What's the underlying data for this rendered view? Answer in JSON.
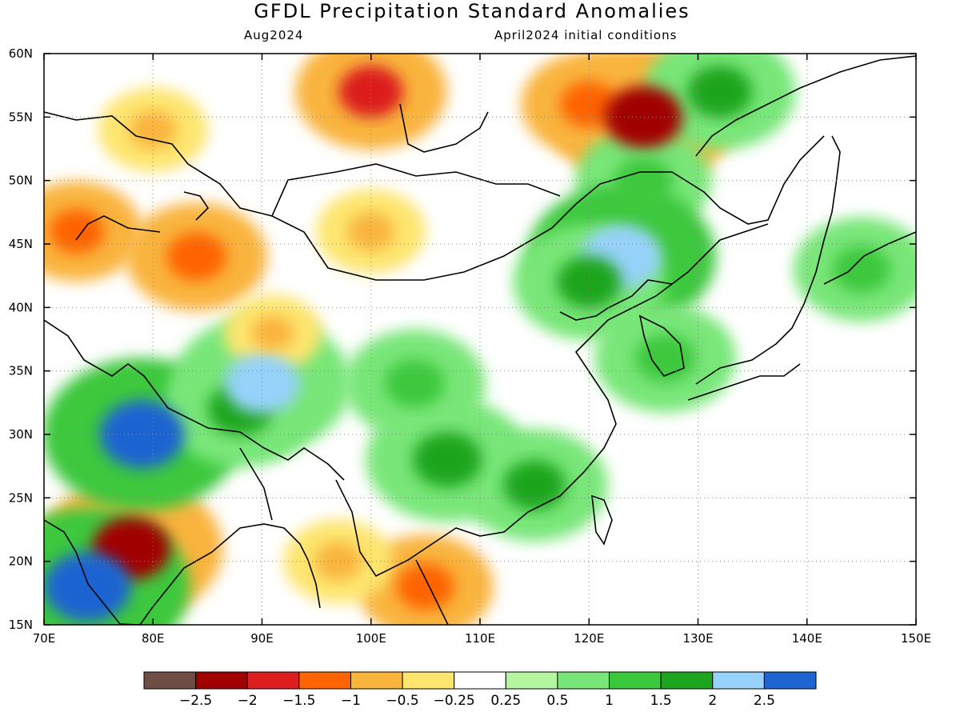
{
  "title": "GFDL Precipitation Standard Anomalies",
  "valid_month": "Aug2024",
  "init_conditions": "April2024 initial conditions",
  "map": {
    "lon_range": [
      70,
      150
    ],
    "lat_range": [
      15,
      60
    ],
    "lon_ticks": [
      "70E",
      "80E",
      "90E",
      "100E",
      "110E",
      "120E",
      "130E",
      "140E",
      "150E"
    ],
    "lat_ticks": [
      "15N",
      "20N",
      "25N",
      "30N",
      "35N",
      "40N",
      "45N",
      "50N",
      "55N",
      "60N"
    ],
    "gridlines": "dotted"
  },
  "colorbar": {
    "colors": [
      "#6e4e44",
      "#a10000",
      "#dc1e1e",
      "#ff6400",
      "#f9b43c",
      "#fde56e",
      "#ffffff",
      "#b4f5a0",
      "#78e678",
      "#3cc83c",
      "#1ea51e",
      "#96d2fa",
      "#1e64d2"
    ],
    "labels": [
      "-2.5",
      "-2",
      "-1.5",
      "-1",
      "-0.5",
      "-0.25",
      "0.25",
      "0.5",
      "1",
      "1.5",
      "2",
      "2.5"
    ]
  },
  "anomaly_regions": [
    {
      "lon": 78,
      "lat": 21,
      "value": -2.2
    },
    {
      "lon": 74,
      "lat": 18,
      "value": 2.6
    },
    {
      "lon": 79,
      "lat": 30,
      "value": 2.5
    },
    {
      "lon": 88,
      "lat": 32,
      "value": 1.6
    },
    {
      "lon": 90,
      "lat": 34,
      "value": 2.1
    },
    {
      "lon": 84,
      "lat": 44,
      "value": -1.4
    },
    {
      "lon": 73,
      "lat": 46,
      "value": -1.2
    },
    {
      "lon": 80,
      "lat": 54,
      "value": -0.8
    },
    {
      "lon": 100,
      "lat": 57,
      "value": -1.6
    },
    {
      "lon": 120,
      "lat": 56,
      "value": -1.3
    },
    {
      "lon": 125,
      "lat": 55,
      "value": -2.2
    },
    {
      "lon": 125,
      "lat": 50,
      "value": 1.3
    },
    {
      "lon": 123,
      "lat": 44,
      "value": 2.3
    },
    {
      "lon": 120,
      "lat": 42,
      "value": 1.6
    },
    {
      "lon": 107,
      "lat": 28,
      "value": 1.8
    },
    {
      "lon": 115,
      "lat": 26,
      "value": 1.5
    },
    {
      "lon": 104,
      "lat": 34,
      "value": 1.4
    },
    {
      "lon": 100,
      "lat": 46,
      "value": -0.8
    },
    {
      "lon": 105,
      "lat": 18,
      "value": -1.3
    },
    {
      "lon": 132,
      "lat": 57,
      "value": 1.6
    },
    {
      "lon": 97,
      "lat": 20,
      "value": -0.8
    },
    {
      "lon": 127,
      "lat": 36,
      "value": 1.4
    },
    {
      "lon": 145,
      "lat": 43,
      "value": 1.3
    },
    {
      "lon": 91,
      "lat": 38,
      "value": -0.6
    }
  ]
}
